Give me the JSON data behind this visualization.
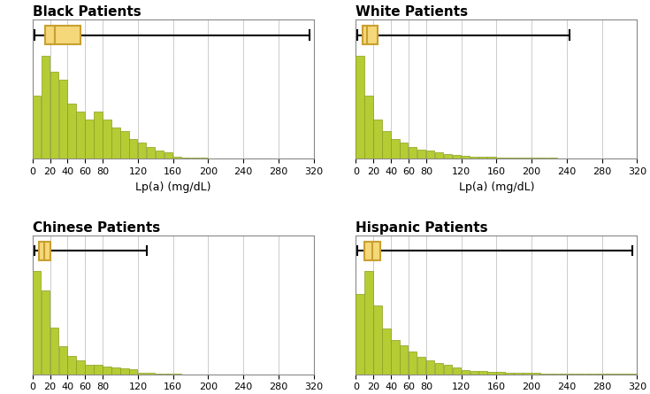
{
  "panels": [
    {
      "title": "Black Patients",
      "bar_heights": [
        8,
        13,
        11,
        10,
        7,
        6,
        5,
        6,
        5,
        4,
        3.5,
        2.5,
        2,
        1.5,
        1,
        0.8,
        0.3,
        0.2,
        0.1,
        0.1,
        0.05,
        0.05,
        0.05,
        0.05,
        0.05,
        0.05,
        0.05,
        0.05,
        0.05,
        0.05,
        0.05,
        0.05
      ],
      "boxplot": {
        "whisker_lo": 2,
        "q1": 14,
        "median": 25,
        "q3": 55,
        "whisker_hi": 315
      }
    },
    {
      "title": "White Patients",
      "bar_heights": [
        13,
        8,
        5,
        3.5,
        2.5,
        2,
        1.5,
        1.2,
        1,
        0.8,
        0.6,
        0.5,
        0.4,
        0.3,
        0.3,
        0.25,
        0.2,
        0.15,
        0.15,
        0.1,
        0.1,
        0.1,
        0.1,
        0.05,
        0.05,
        0.05,
        0.05,
        0.05,
        0.05,
        0.05,
        0.05,
        0.05
      ],
      "boxplot": {
        "whisker_lo": 2,
        "q1": 8,
        "median": 13,
        "q3": 25,
        "whisker_hi": 243
      }
    },
    {
      "title": "Chinese Patients",
      "bar_heights": [
        11,
        9,
        5,
        3,
        2,
        1.5,
        1,
        1,
        0.8,
        0.7,
        0.6,
        0.5,
        0.15,
        0.15,
        0.1,
        0.05,
        0.05,
        0,
        0,
        0,
        0,
        0,
        0,
        0,
        0,
        0,
        0,
        0,
        0,
        0,
        0,
        0
      ],
      "boxplot": {
        "whisker_lo": 2,
        "q1": 7,
        "median": 13,
        "q3": 20,
        "whisker_hi": 130
      }
    },
    {
      "title": "Hispanic Patients",
      "bar_heights": [
        7,
        9,
        6,
        4,
        3,
        2.5,
        2,
        1.5,
        1.2,
        1,
        0.8,
        0.6,
        0.4,
        0.3,
        0.3,
        0.25,
        0.2,
        0.15,
        0.1,
        0.1,
        0.1,
        0.05,
        0.05,
        0.05,
        0.05,
        0.05,
        0.05,
        0.05,
        0.05,
        0.05,
        0.05,
        0.05
      ],
      "boxplot": {
        "whisker_lo": 2,
        "q1": 10,
        "median": 19,
        "q3": 28,
        "whisker_hi": 315
      }
    }
  ],
  "bar_color": "#b5cc34",
  "bar_edge_color": "#8a9e20",
  "box_face_color": "#f5d87a",
  "box_edge_color": "#c8a030",
  "whisker_color": "black",
  "xlabel": "Lp(a) (mg/dL)",
  "xticks": [
    0,
    20,
    40,
    60,
    80,
    120,
    160,
    200,
    240,
    280,
    320
  ],
  "xmax": 320,
  "bin_width": 10,
  "nbins": 32,
  "title_fontsize": 11,
  "label_fontsize": 9,
  "tick_fontsize": 8,
  "grid_color": "#cccccc"
}
